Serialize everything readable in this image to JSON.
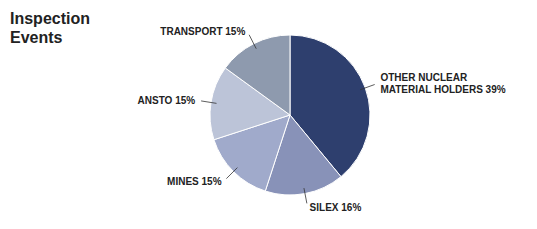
{
  "chart_data": {
    "type": "pie",
    "title": "Inspection\nEvents",
    "categories": [
      "OTHER NUCLEAR\nMATERIAL HOLDERS 39%",
      "SILEX 16%",
      "MINES 15%",
      "ANSTO 15%",
      "TRANSPORT 15%"
    ],
    "values": [
      39,
      16,
      15,
      15,
      15
    ],
    "colors": [
      "#2e3f6e",
      "#8892b8",
      "#a0aacb",
      "#bcc4d8",
      "#8e9aae"
    ]
  }
}
